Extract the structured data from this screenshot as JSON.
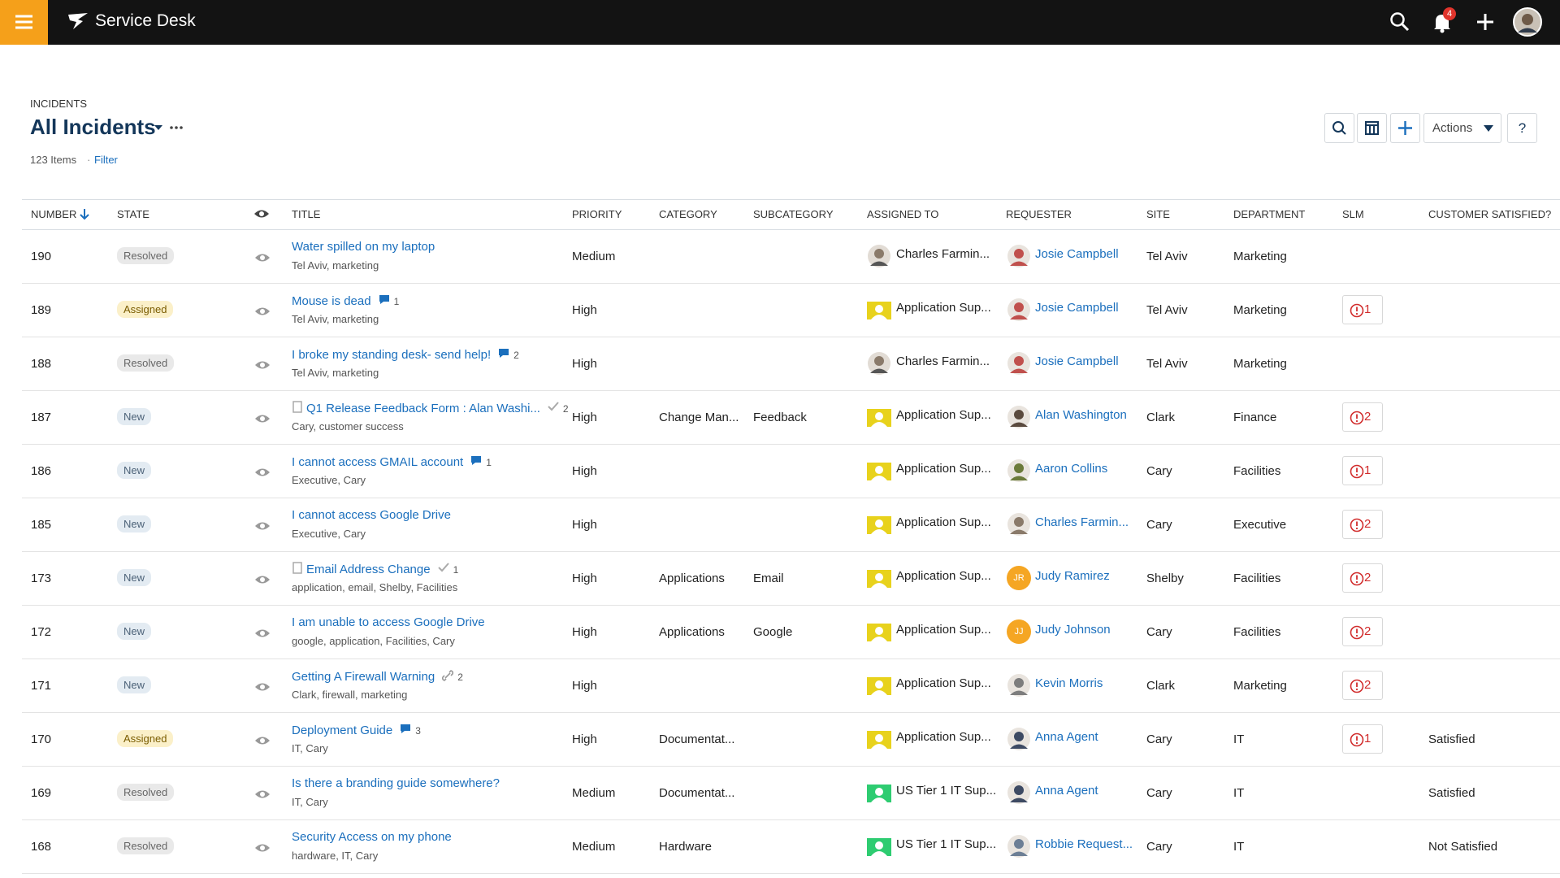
{
  "topbar": {
    "app_name": "Service Desk",
    "notifications": 4
  },
  "header": {
    "breadcrumb": "INCIDENTS",
    "title": "All Incidents",
    "item_count": "123 Items",
    "filter": "Filter",
    "actions": "Actions",
    "help": "?"
  },
  "table": {
    "columns": [
      "NUMBER",
      "STATE",
      "TITLE",
      "PRIORITY",
      "CATEGORY",
      "SUBCATEGORY",
      "ASSIGNED TO",
      "REQUESTER",
      "SITE",
      "DEPARTMENT",
      "SLM",
      "CUSTOMER SATISFIED?"
    ],
    "rows": [
      {
        "number": 190,
        "state": "Resolved",
        "state_colors": [
          "#e9e9e9",
          "#666666"
        ],
        "title": "Water spilled on my laptop",
        "doc": false,
        "badge": null,
        "tags": "Tel Aviv, marketing",
        "priority": "Medium",
        "category": null,
        "subcategory": null,
        "assigned": {
          "name": "Charles Farmin...",
          "kind": "person",
          "color": "#8a7a6a"
        },
        "requester": {
          "name": "Josie Campbell",
          "color": "#c0504d",
          "initials": null
        },
        "site": "Tel Aviv",
        "department": "Marketing",
        "slm": null,
        "satisfied": null
      },
      {
        "number": 189,
        "state": "Assigned",
        "state_colors": [
          "#fbf0c9",
          "#7a5c00"
        ],
        "title": "Mouse is dead",
        "doc": false,
        "badge": {
          "icon": "comment",
          "count": 1
        },
        "tags": "Tel Aviv, marketing",
        "priority": "High",
        "category": null,
        "subcategory": null,
        "assigned": {
          "name": "Application Sup...",
          "kind": "group",
          "color": "#e8d21c"
        },
        "requester": {
          "name": "Josie Campbell",
          "color": "#c0504d",
          "initials": null
        },
        "site": "Tel Aviv",
        "department": "Marketing",
        "slm": 1,
        "satisfied": null
      },
      {
        "number": 188,
        "state": "Resolved",
        "state_colors": [
          "#e9e9e9",
          "#666666"
        ],
        "title": "I broke my standing desk- send help!",
        "doc": false,
        "badge": {
          "icon": "comment",
          "count": 2
        },
        "tags": "Tel Aviv, marketing",
        "priority": "High",
        "category": null,
        "subcategory": null,
        "assigned": {
          "name": "Charles Farmin...",
          "kind": "person",
          "color": "#8a7a6a"
        },
        "requester": {
          "name": "Josie Campbell",
          "color": "#c0504d",
          "initials": null
        },
        "site": "Tel Aviv",
        "department": "Marketing",
        "slm": null,
        "satisfied": null
      },
      {
        "number": 187,
        "state": "New",
        "state_colors": [
          "#e3ebf2",
          "#4c6278"
        ],
        "title": "Q1 Release Feedback Form : Alan Washi...",
        "doc": true,
        "badge": {
          "icon": "check",
          "count": 2
        },
        "tags": "Cary, customer success",
        "priority": "High",
        "category": "Change Man...",
        "subcategory": "Feedback",
        "assigned": {
          "name": "Application Sup...",
          "kind": "group",
          "color": "#e8d21c"
        },
        "requester": {
          "name": "Alan Washington",
          "color": "#5a4a3e",
          "initials": null
        },
        "site": "Clark",
        "department": "Finance",
        "slm": 2,
        "satisfied": null
      },
      {
        "number": 186,
        "state": "New",
        "state_colors": [
          "#e3ebf2",
          "#4c6278"
        ],
        "title": "I cannot access GMAIL account",
        "doc": false,
        "badge": {
          "icon": "comment",
          "count": 1
        },
        "tags": "Executive, Cary",
        "priority": "High",
        "category": null,
        "subcategory": null,
        "assigned": {
          "name": "Application Sup...",
          "kind": "group",
          "color": "#e8d21c"
        },
        "requester": {
          "name": "Aaron Collins",
          "color": "#6b7a3a",
          "initials": null
        },
        "site": "Cary",
        "department": "Facilities",
        "slm": 1,
        "satisfied": null
      },
      {
        "number": 185,
        "state": "New",
        "state_colors": [
          "#e3ebf2",
          "#4c6278"
        ],
        "title": "I cannot access Google Drive",
        "doc": false,
        "badge": null,
        "tags": "Executive, Cary",
        "priority": "High",
        "category": null,
        "subcategory": null,
        "assigned": {
          "name": "Application Sup...",
          "kind": "group",
          "color": "#e8d21c"
        },
        "requester": {
          "name": "Charles Farmin...",
          "color": "#8a7a6a",
          "initials": null
        },
        "site": "Cary",
        "department": "Executive",
        "slm": 2,
        "satisfied": null
      },
      {
        "number": 173,
        "state": "New",
        "state_colors": [
          "#e3ebf2",
          "#4c6278"
        ],
        "title": "Email Address Change",
        "doc": true,
        "badge": {
          "icon": "check",
          "count": 1
        },
        "tags": "application, email, Shelby, Facilities",
        "priority": "High",
        "category": "Applications",
        "subcategory": "Email",
        "assigned": {
          "name": "Application Sup...",
          "kind": "group",
          "color": "#e8d21c"
        },
        "requester": {
          "name": "Judy Ramirez",
          "color": "#f5a623",
          "initials": "JR"
        },
        "site": "Shelby",
        "department": "Facilities",
        "slm": 2,
        "satisfied": null
      },
      {
        "number": 172,
        "state": "New",
        "state_colors": [
          "#e3ebf2",
          "#4c6278"
        ],
        "title": "I am unable to access Google Drive",
        "doc": false,
        "badge": null,
        "tags": "google, application, Facilities, Cary",
        "priority": "High",
        "category": "Applications",
        "subcategory": "Google",
        "assigned": {
          "name": "Application Sup...",
          "kind": "group",
          "color": "#e8d21c"
        },
        "requester": {
          "name": "Judy Johnson",
          "color": "#f5a623",
          "initials": "JJ"
        },
        "site": "Cary",
        "department": "Facilities",
        "slm": 2,
        "satisfied": null
      },
      {
        "number": 171,
        "state": "New",
        "state_colors": [
          "#e3ebf2",
          "#4c6278"
        ],
        "title": "Getting A Firewall Warning",
        "doc": false,
        "badge": {
          "icon": "link",
          "count": 2
        },
        "tags": "Clark, firewall, marketing",
        "priority": "High",
        "category": null,
        "subcategory": null,
        "assigned": {
          "name": "Application Sup...",
          "kind": "group",
          "color": "#e8d21c"
        },
        "requester": {
          "name": "Kevin Morris",
          "color": "#7d7d7d",
          "initials": null
        },
        "site": "Clark",
        "department": "Marketing",
        "slm": 2,
        "satisfied": null
      },
      {
        "number": 170,
        "state": "Assigned",
        "state_colors": [
          "#fbf0c9",
          "#7a5c00"
        ],
        "title": "Deployment Guide",
        "doc": false,
        "badge": {
          "icon": "comment",
          "count": 3
        },
        "tags": "IT, Cary",
        "priority": "High",
        "category": "Documentat...",
        "subcategory": null,
        "assigned": {
          "name": "Application Sup...",
          "kind": "group",
          "color": "#e8d21c"
        },
        "requester": {
          "name": "Anna Agent",
          "color": "#3d4a63",
          "initials": null
        },
        "site": "Cary",
        "department": "IT",
        "slm": 1,
        "satisfied": "Satisfied"
      },
      {
        "number": 169,
        "state": "Resolved",
        "state_colors": [
          "#e9e9e9",
          "#666666"
        ],
        "title": "Is there a branding guide somewhere?",
        "doc": false,
        "badge": null,
        "tags": "IT, Cary",
        "priority": "Medium",
        "category": "Documentat...",
        "subcategory": null,
        "assigned": {
          "name": "US Tier 1 IT Sup...",
          "kind": "group",
          "color": "#2ecc71"
        },
        "requester": {
          "name": "Anna Agent",
          "color": "#3d4a63",
          "initials": null
        },
        "site": "Cary",
        "department": "IT",
        "slm": null,
        "satisfied": "Satisfied"
      },
      {
        "number": 168,
        "state": "Resolved",
        "state_colors": [
          "#e9e9e9",
          "#666666"
        ],
        "title": "Security Access on my phone",
        "doc": false,
        "badge": null,
        "tags": "hardware, IT, Cary",
        "priority": "Medium",
        "category": "Hardware",
        "subcategory": null,
        "assigned": {
          "name": "US Tier 1 IT Sup...",
          "kind": "group",
          "color": "#2ecc71"
        },
        "requester": {
          "name": "Robbie Request...",
          "color": "#6d7f95",
          "initials": null
        },
        "site": "Cary",
        "department": "IT",
        "slm": null,
        "satisfied": "Not Satisfied"
      }
    ]
  }
}
